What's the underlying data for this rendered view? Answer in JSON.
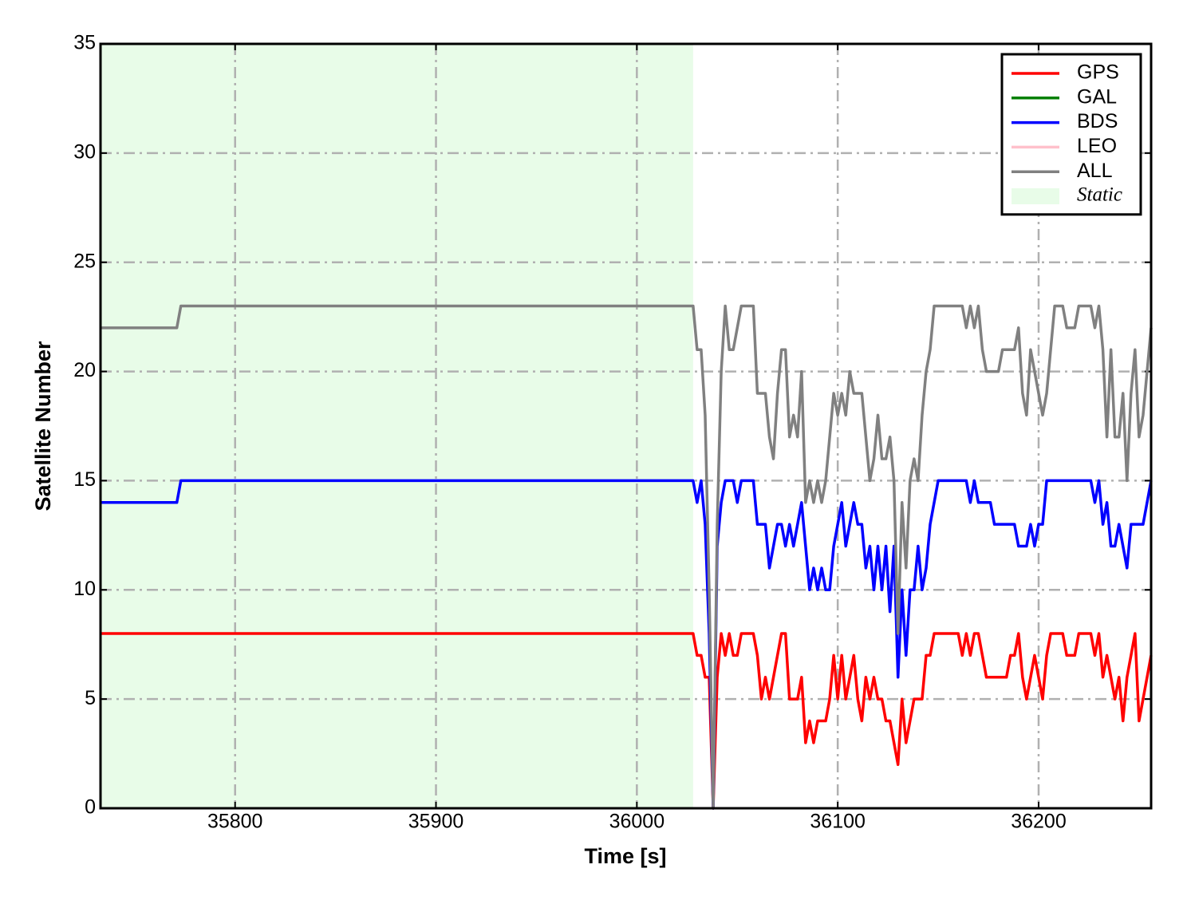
{
  "chart_data": {
    "type": "line",
    "xlabel": "Time [s]",
    "ylabel": "Satellite Number",
    "xlim": [
      35733,
      36256
    ],
    "ylim": [
      0,
      35
    ],
    "xticks": [
      35800,
      35900,
      36000,
      36100,
      36200
    ],
    "yticks": [
      0,
      5,
      10,
      15,
      20,
      25,
      30,
      35
    ],
    "grid": true,
    "legend": "upper right",
    "span": {
      "name": "Static",
      "range": [
        35733,
        36028
      ],
      "color": "#e8fce8"
    },
    "x": [
      35733,
      35771,
      35773,
      36028,
      36030,
      36032,
      36034,
      36036,
      36038,
      36040,
      36042,
      36044,
      36046,
      36048,
      36050,
      36052,
      36054,
      36056,
      36058,
      36060,
      36062,
      36064,
      36066,
      36068,
      36070,
      36072,
      36074,
      36076,
      36078,
      36080,
      36082,
      36084,
      36086,
      36088,
      36090,
      36092,
      36094,
      36096,
      36098,
      36100,
      36102,
      36104,
      36106,
      36108,
      36110,
      36112,
      36114,
      36116,
      36118,
      36120,
      36122,
      36124,
      36126,
      36128,
      36130,
      36132,
      36134,
      36136,
      36138,
      36140,
      36142,
      36144,
      36146,
      36148,
      36150,
      36152,
      36154,
      36156,
      36158,
      36160,
      36162,
      36164,
      36166,
      36168,
      36170,
      36172,
      36174,
      36176,
      36178,
      36180,
      36182,
      36184,
      36186,
      36188,
      36190,
      36192,
      36194,
      36196,
      36198,
      36200,
      36202,
      36204,
      36206,
      36208,
      36210,
      36212,
      36214,
      36216,
      36218,
      36220,
      36222,
      36224,
      36226,
      36228,
      36230,
      36232,
      36234,
      36236,
      36238,
      36240,
      36242,
      36244,
      36246,
      36248,
      36250,
      36252,
      36254,
      36256
    ],
    "series": [
      {
        "name": "GPS",
        "color": "#ff0000",
        "values": [
          8,
          8,
          8,
          8,
          7,
          7,
          6,
          6,
          0,
          6,
          8,
          7,
          8,
          7,
          7,
          8,
          8,
          8,
          8,
          7,
          5,
          6,
          5,
          6,
          7,
          8,
          8,
          5,
          5,
          5,
          6,
          3,
          4,
          3,
          4,
          4,
          4,
          5,
          7,
          5,
          7,
          5,
          6,
          7,
          5,
          4,
          6,
          5,
          6,
          5,
          5,
          4,
          4,
          3,
          2,
          5,
          3,
          4,
          5,
          5,
          5,
          7,
          7,
          8,
          8,
          8,
          8,
          8,
          8,
          8,
          7,
          8,
          7,
          8,
          8,
          7,
          6,
          6,
          6,
          6,
          6,
          6,
          7,
          7,
          8,
          6,
          5,
          6,
          7,
          6,
          5,
          7,
          8,
          8,
          8,
          8,
          7,
          7,
          7,
          8,
          8,
          8,
          8,
          7,
          8,
          6,
          7,
          6,
          5,
          6,
          4,
          6,
          7,
          8,
          4,
          5,
          6,
          7
        ]
      },
      {
        "name": "GAL",
        "color": "#008000",
        "values": [
          null,
          null,
          null,
          null,
          null,
          null,
          null,
          null,
          null,
          null,
          null,
          null,
          null,
          null,
          null,
          null,
          null,
          null,
          null,
          null,
          null,
          null,
          null,
          null,
          null,
          null,
          null,
          null,
          null,
          null,
          null,
          null,
          null,
          null,
          null,
          null,
          null,
          null,
          null,
          null,
          null,
          null,
          null,
          null,
          null,
          null,
          null,
          null,
          null,
          null,
          null,
          null,
          null,
          null,
          null,
          null,
          null,
          null,
          null,
          null,
          null,
          null,
          null,
          null,
          null,
          null,
          null,
          null,
          null,
          null,
          null,
          null,
          null,
          null,
          null,
          null,
          null,
          null,
          null,
          null,
          null,
          null,
          null,
          null,
          null,
          null,
          null,
          null,
          null,
          null,
          null,
          null,
          null,
          null,
          null,
          null,
          null,
          null,
          null,
          null,
          null,
          null,
          null,
          null,
          null,
          null,
          null,
          null,
          null,
          null,
          null,
          null,
          null,
          null,
          null,
          null,
          null,
          null
        ]
      },
      {
        "name": "BDS",
        "color": "#0000ff",
        "values": [
          14,
          14,
          15,
          15,
          14,
          15,
          13,
          8,
          0,
          12,
          14,
          15,
          15,
          15,
          14,
          15,
          15,
          15,
          15,
          13,
          13,
          13,
          11,
          12,
          13,
          13,
          12,
          13,
          12,
          13,
          14,
          12,
          10,
          11,
          10,
          11,
          10,
          10,
          12,
          13,
          14,
          12,
          13,
          14,
          13,
          13,
          11,
          12,
          10,
          12,
          10,
          12,
          9,
          12,
          6,
          10,
          7,
          10,
          10,
          12,
          10,
          11,
          13,
          14,
          15,
          15,
          15,
          15,
          15,
          15,
          15,
          15,
          14,
          15,
          14,
          14,
          14,
          14,
          13,
          13,
          13,
          13,
          13,
          13,
          12,
          12,
          12,
          13,
          12,
          13,
          13,
          15,
          15,
          15,
          15,
          15,
          15,
          15,
          15,
          15,
          15,
          15,
          15,
          14,
          15,
          13,
          14,
          12,
          12,
          13,
          12,
          11,
          13,
          13,
          13,
          13,
          14,
          15
        ]
      },
      {
        "name": "LEO",
        "color": "#ffc0cb",
        "values": [
          null,
          null,
          null,
          null,
          null,
          null,
          null,
          null,
          null,
          null,
          null,
          null,
          null,
          null,
          null,
          null,
          null,
          null,
          null,
          null,
          null,
          null,
          null,
          null,
          null,
          null,
          null,
          null,
          null,
          null,
          null,
          null,
          null,
          null,
          null,
          null,
          null,
          null,
          null,
          null,
          null,
          null,
          null,
          null,
          null,
          null,
          null,
          null,
          null,
          null,
          null,
          null,
          null,
          null,
          null,
          null,
          null,
          null,
          null,
          null,
          null,
          null,
          null,
          null,
          null,
          null,
          null,
          null,
          null,
          null,
          null,
          null,
          null,
          null,
          null,
          null,
          null,
          null,
          null,
          null,
          null,
          null,
          null,
          null,
          null,
          null,
          null,
          null,
          null,
          null,
          null,
          null,
          null,
          null,
          null,
          null,
          null,
          null,
          null,
          null,
          null,
          null,
          null,
          null,
          null,
          null,
          null,
          null,
          null,
          null,
          null,
          null,
          null,
          null,
          null,
          null,
          null,
          null
        ]
      },
      {
        "name": "ALL",
        "color": "#808080",
        "values": [
          22,
          22,
          23,
          23,
          21,
          21,
          18,
          10,
          0,
          13,
          20,
          23,
          21,
          21,
          22,
          23,
          23,
          23,
          23,
          19,
          19,
          19,
          17,
          16,
          19,
          21,
          21,
          17,
          18,
          17,
          20,
          14,
          15,
          14,
          15,
          14,
          15,
          17,
          19,
          18,
          19,
          18,
          20,
          19,
          19,
          19,
          17,
          15,
          16,
          18,
          16,
          16,
          17,
          15,
          8,
          14,
          11,
          15,
          16,
          15,
          18,
          20,
          21,
          23,
          23,
          23,
          23,
          23,
          23,
          23,
          23,
          22,
          23,
          22,
          23,
          21,
          20,
          20,
          20,
          20,
          21,
          21,
          21,
          21,
          22,
          19,
          18,
          21,
          20,
          19,
          18,
          19,
          21,
          23,
          23,
          23,
          22,
          22,
          22,
          23,
          23,
          23,
          23,
          22,
          23,
          21,
          17,
          21,
          17,
          17,
          19,
          15,
          19,
          21,
          17,
          18,
          20,
          22
        ]
      }
    ]
  }
}
